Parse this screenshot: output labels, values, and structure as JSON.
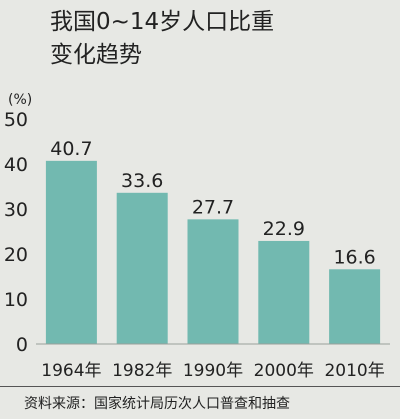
{
  "chart_data": {
    "type": "bar",
    "title": "我国0~14岁人口比重\n变化趋势",
    "ylabel": "(%)",
    "categories": [
      "1964年",
      "1982年",
      "1990年",
      "2000年",
      "2010年"
    ],
    "values": [
      40.7,
      33.6,
      27.7,
      22.9,
      16.6
    ],
    "value_labels": [
      "40.7",
      "33.6",
      "27.7",
      "22.9",
      "16.6"
    ],
    "yticks": [
      0,
      10,
      20,
      30,
      40,
      50
    ],
    "ylim": [
      0,
      50
    ],
    "grid": false,
    "bar_color": "#72b9b0",
    "source": "资料来源：国家统计局历次人口普查和抽查"
  }
}
